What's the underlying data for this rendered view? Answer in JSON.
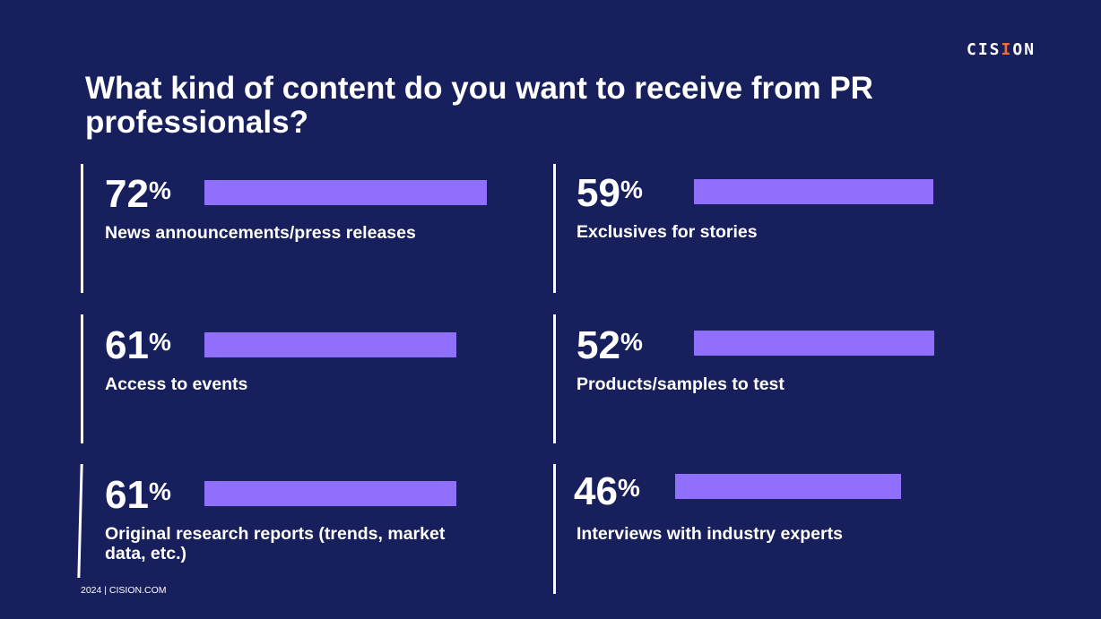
{
  "logo": "CISION",
  "title": "What kind of content do you want to receive from PR professionals?",
  "footer": "2024 | CISION.COM",
  "percent_sign": "%",
  "colors": {
    "background": "#17205c",
    "bar": "#8f6ffb",
    "logo_accent": "#f26b3a"
  },
  "chart_data": {
    "type": "bar",
    "title": "What kind of content do you want to receive from PR professionals?",
    "categories": [
      "News announcements/press releases",
      "Exclusives for stories",
      "Access to events",
      "Products/samples to test",
      "Original research reports (trends, market data, etc.)",
      "Interviews with industry experts"
    ],
    "values": [
      72,
      59,
      61,
      52,
      61,
      46
    ],
    "value_labels": [
      "72",
      "59",
      "61",
      "52",
      "61",
      "46"
    ],
    "unit": "%"
  }
}
